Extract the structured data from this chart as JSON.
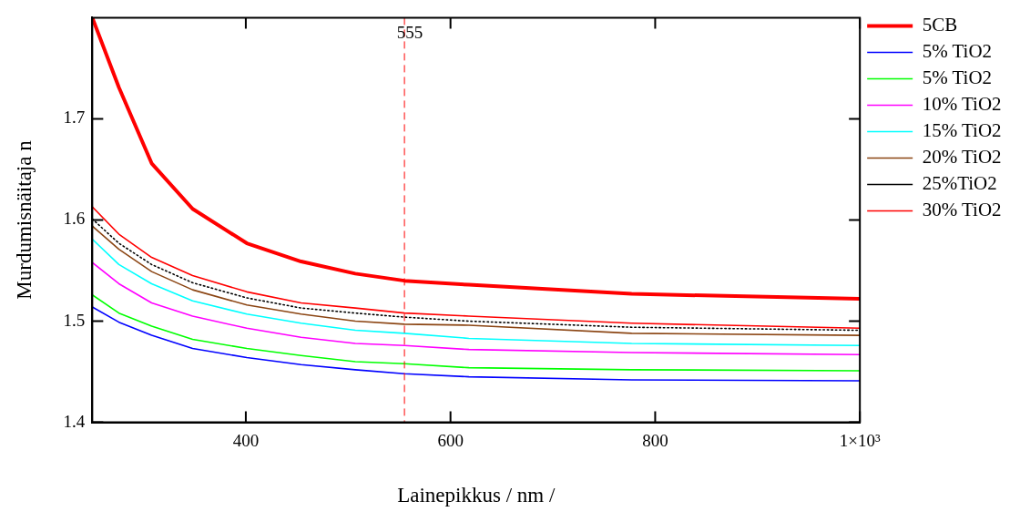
{
  "chart_data": {
    "type": "line",
    "xlabel": "Lainepikkus / nm /",
    "ylabel": "Murdumisnäitaja n",
    "x": [
      250,
      276,
      308,
      348,
      401,
      454,
      507,
      555,
      618,
      777,
      1000
    ],
    "series": [
      {
        "name": "5CB",
        "color": "#ff0000",
        "values": [
          1.8,
          1.731,
          1.656,
          1.611,
          1.577,
          1.559,
          1.547,
          1.54,
          1.536,
          1.527,
          1.522
        ]
      },
      {
        "name": "5% TiO2",
        "color": "#0000ff",
        "values": [
          1.514,
          1.499,
          1.486,
          1.473,
          1.464,
          1.457,
          1.452,
          1.448,
          1.445,
          1.442,
          1.441
        ]
      },
      {
        "name": "5% TiO2",
        "color": "#00ff00",
        "values": [
          1.526,
          1.508,
          1.495,
          1.482,
          1.473,
          1.466,
          1.46,
          1.458,
          1.454,
          1.452,
          1.451
        ]
      },
      {
        "name": "10% TiO2",
        "color": "#ff00ff",
        "values": [
          1.558,
          1.537,
          1.518,
          1.505,
          1.493,
          1.484,
          1.478,
          1.476,
          1.472,
          1.469,
          1.467
        ]
      },
      {
        "name": "15% TiO2",
        "color": "#00ffff",
        "values": [
          1.581,
          1.556,
          1.537,
          1.52,
          1.507,
          1.498,
          1.491,
          1.488,
          1.483,
          1.478,
          1.476
        ]
      },
      {
        "name": "20% TiO2",
        "color": "#8b4513",
        "values": [
          1.594,
          1.571,
          1.549,
          1.531,
          1.516,
          1.507,
          1.5,
          1.497,
          1.496,
          1.488,
          1.486
        ]
      },
      {
        "name": "25%TiO2",
        "color": "#000000",
        "line_style": "dotted",
        "values": [
          1.601,
          1.577,
          1.556,
          1.538,
          1.523,
          1.513,
          1.508,
          1.504,
          1.5,
          1.494,
          1.491
        ]
      },
      {
        "name": "30% TiO2",
        "color": "#ff0000",
        "values": [
          1.613,
          1.586,
          1.563,
          1.545,
          1.529,
          1.518,
          1.513,
          1.508,
          1.505,
          1.498,
          1.493
        ]
      }
    ],
    "xlim": [
      250,
      1000
    ],
    "xticks": [
      400,
      600,
      800,
      {
        "value": 1000,
        "label": "1×10³"
      }
    ],
    "ylim": [
      1.4,
      1.8
    ],
    "yticks": [
      1.4,
      1.5,
      1.6,
      1.7
    ],
    "ref_lines": [
      {
        "axis": "x",
        "value": 555,
        "label": "555",
        "color": "#ff0000",
        "line_style": "dashed"
      }
    ],
    "grid": false,
    "legend": "right",
    "marker": "none",
    "line_style": "solid"
  }
}
